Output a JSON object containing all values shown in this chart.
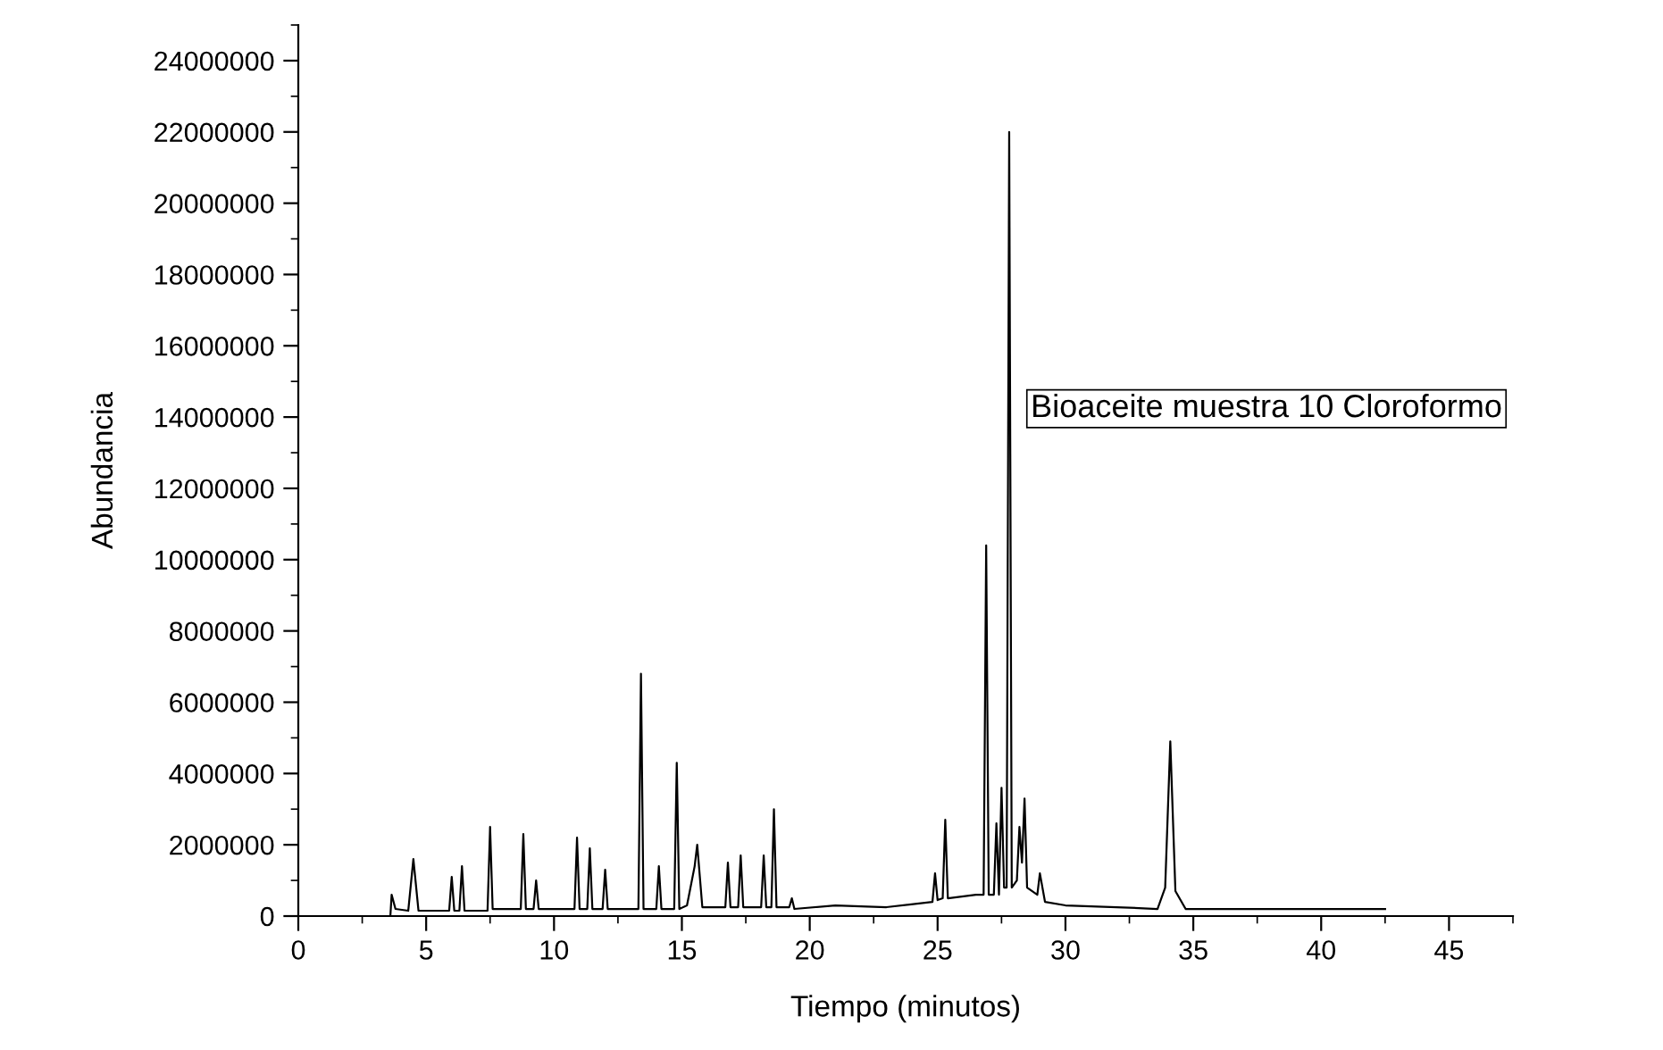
{
  "chart_data": {
    "type": "line",
    "xlabel": "Tiempo (minutos)",
    "ylabel": "Abundancia",
    "annotations": [
      "Bioaceite muestra 10 Cloroformo"
    ],
    "xlim": [
      0,
      47.5
    ],
    "xticks": [
      0,
      5,
      10,
      15,
      20,
      25,
      30,
      35,
      40,
      45
    ],
    "ylim": [
      0,
      25000000
    ],
    "yticks": [
      0,
      2000000,
      4000000,
      6000000,
      8000000,
      10000000,
      12000000,
      14000000,
      16000000,
      18000000,
      20000000,
      22000000,
      24000000
    ],
    "grid": false,
    "legend": false,
    "series": [
      {
        "color": "#000000",
        "x": [
          3.6,
          3.65,
          3.8,
          4.3,
          4.5,
          4.7,
          5.9,
          6.0,
          6.1,
          6.3,
          6.4,
          6.5,
          7.4,
          7.5,
          7.6,
          8.7,
          8.8,
          8.9,
          9.2,
          9.3,
          9.4,
          10.8,
          10.9,
          11.0,
          11.3,
          11.4,
          11.5,
          11.9,
          12.0,
          12.1,
          13.3,
          13.4,
          13.5,
          14.0,
          14.1,
          14.2,
          14.7,
          14.8,
          14.9,
          15.2,
          15.5,
          15.6,
          15.8,
          16.7,
          16.8,
          16.9,
          17.2,
          17.3,
          17.4,
          18.1,
          18.2,
          18.3,
          18.5,
          18.6,
          18.7,
          19.2,
          19.3,
          19.4,
          21,
          23,
          24.8,
          24.9,
          25.0,
          25.2,
          25.3,
          25.4,
          26.5,
          26.8,
          26.9,
          27.0,
          27.2,
          27.3,
          27.4,
          27.5,
          27.6,
          27.7,
          27.8,
          27.9,
          28.1,
          28.2,
          28.3,
          28.4,
          28.5,
          28.9,
          29.0,
          29.2,
          30,
          32,
          33.6,
          33.9,
          34.1,
          34.3,
          34.7,
          36,
          38,
          40,
          42.5
        ],
        "values": [
          0,
          600000,
          200000,
          150000,
          1600000,
          150000,
          150000,
          1100000,
          150000,
          150000,
          1400000,
          150000,
          150000,
          2500000,
          200000,
          200000,
          2300000,
          200000,
          200000,
          1000000,
          200000,
          200000,
          2200000,
          200000,
          200000,
          1900000,
          200000,
          200000,
          1300000,
          200000,
          200000,
          6800000,
          200000,
          200000,
          1400000,
          200000,
          200000,
          4300000,
          200000,
          300000,
          1400000,
          2000000,
          250000,
          250000,
          1500000,
          250000,
          250000,
          1700000,
          250000,
          250000,
          1700000,
          250000,
          250000,
          3000000,
          250000,
          250000,
          500000,
          200000,
          300000,
          250000,
          400000,
          1200000,
          450000,
          500000,
          2700000,
          500000,
          600000,
          600000,
          10400000,
          600000,
          600000,
          2600000,
          600000,
          3600000,
          800000,
          800000,
          22000000,
          800000,
          1000000,
          2500000,
          1500000,
          3300000,
          800000,
          600000,
          1200000,
          400000,
          300000,
          250000,
          200000,
          800000,
          4900000,
          700000,
          200000,
          200000,
          200000,
          200000,
          200000
        ]
      }
    ]
  }
}
